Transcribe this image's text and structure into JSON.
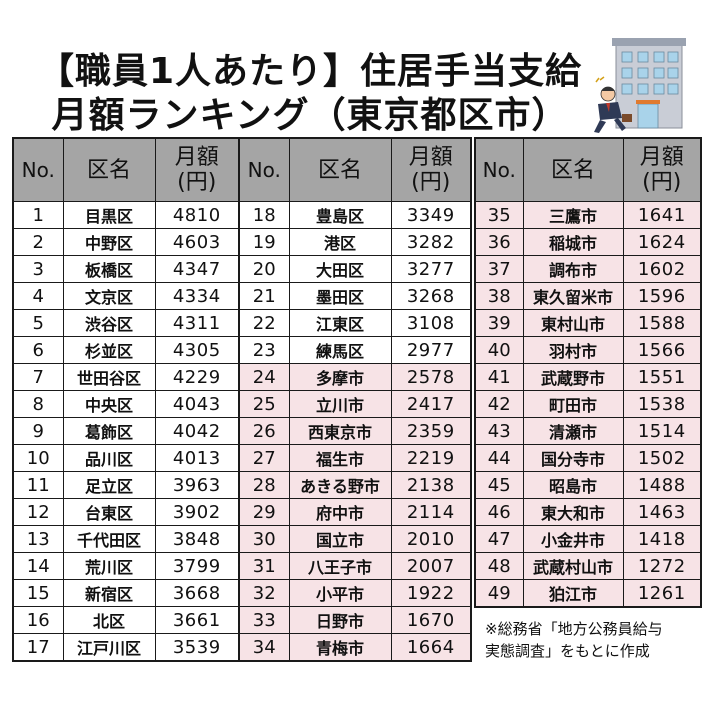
{
  "title": {
    "line1": "【職員1人あたり】住居手当支給",
    "line2": "月額ランキング（東京都区市）"
  },
  "headers": {
    "no": "No.",
    "name": "区名",
    "amount_line1": "月額",
    "amount_line2": "(円)"
  },
  "colors": {
    "header_bg": "#a5a5a5",
    "city_row_bg": "#f7e3e6",
    "border": "#1a1a1a"
  },
  "illustration": {
    "icon": "office-building-businessman-icon"
  },
  "table1": [
    {
      "no": "1",
      "name": "目黒区",
      "amount": "4810",
      "type": "ward"
    },
    {
      "no": "2",
      "name": "中野区",
      "amount": "4603",
      "type": "ward"
    },
    {
      "no": "3",
      "name": "板橋区",
      "amount": "4347",
      "type": "ward"
    },
    {
      "no": "4",
      "name": "文京区",
      "amount": "4334",
      "type": "ward"
    },
    {
      "no": "5",
      "name": "渋谷区",
      "amount": "4311",
      "type": "ward"
    },
    {
      "no": "6",
      "name": "杉並区",
      "amount": "4305",
      "type": "ward"
    },
    {
      "no": "7",
      "name": "世田谷区",
      "amount": "4229",
      "type": "ward"
    },
    {
      "no": "8",
      "name": "中央区",
      "amount": "4043",
      "type": "ward"
    },
    {
      "no": "9",
      "name": "葛飾区",
      "amount": "4042",
      "type": "ward"
    },
    {
      "no": "10",
      "name": "品川区",
      "amount": "4013",
      "type": "ward"
    },
    {
      "no": "11",
      "name": "足立区",
      "amount": "3963",
      "type": "ward"
    },
    {
      "no": "12",
      "name": "台東区",
      "amount": "3902",
      "type": "ward"
    },
    {
      "no": "13",
      "name": "千代田区",
      "amount": "3848",
      "type": "ward"
    },
    {
      "no": "14",
      "name": "荒川区",
      "amount": "3799",
      "type": "ward"
    },
    {
      "no": "15",
      "name": "新宿区",
      "amount": "3668",
      "type": "ward"
    },
    {
      "no": "16",
      "name": "北区",
      "amount": "3661",
      "type": "ward"
    },
    {
      "no": "17",
      "name": "江戸川区",
      "amount": "3539",
      "type": "ward"
    }
  ],
  "table2": [
    {
      "no": "18",
      "name": "豊島区",
      "amount": "3349",
      "type": "ward"
    },
    {
      "no": "19",
      "name": "港区",
      "amount": "3282",
      "type": "ward"
    },
    {
      "no": "20",
      "name": "大田区",
      "amount": "3277",
      "type": "ward"
    },
    {
      "no": "21",
      "name": "墨田区",
      "amount": "3268",
      "type": "ward"
    },
    {
      "no": "22",
      "name": "江東区",
      "amount": "3108",
      "type": "ward"
    },
    {
      "no": "23",
      "name": "練馬区",
      "amount": "2977",
      "type": "ward"
    },
    {
      "no": "24",
      "name": "多摩市",
      "amount": "2578",
      "type": "city"
    },
    {
      "no": "25",
      "name": "立川市",
      "amount": "2417",
      "type": "city"
    },
    {
      "no": "26",
      "name": "西東京市",
      "amount": "2359",
      "type": "city"
    },
    {
      "no": "27",
      "name": "福生市",
      "amount": "2219",
      "type": "city"
    },
    {
      "no": "28",
      "name": "あきる野市",
      "amount": "2138",
      "type": "city"
    },
    {
      "no": "29",
      "name": "府中市",
      "amount": "2114",
      "type": "city"
    },
    {
      "no": "30",
      "name": "国立市",
      "amount": "2010",
      "type": "city"
    },
    {
      "no": "31",
      "name": "八王子市",
      "amount": "2007",
      "type": "city"
    },
    {
      "no": "32",
      "name": "小平市",
      "amount": "1922",
      "type": "city"
    },
    {
      "no": "33",
      "name": "日野市",
      "amount": "1670",
      "type": "city"
    },
    {
      "no": "34",
      "name": "青梅市",
      "amount": "1664",
      "type": "city"
    }
  ],
  "table3": [
    {
      "no": "35",
      "name": "三鷹市",
      "amount": "1641",
      "type": "city"
    },
    {
      "no": "36",
      "name": "稲城市",
      "amount": "1624",
      "type": "city"
    },
    {
      "no": "37",
      "name": "調布市",
      "amount": "1602",
      "type": "city"
    },
    {
      "no": "38",
      "name": "東久留米市",
      "amount": "1596",
      "type": "city"
    },
    {
      "no": "39",
      "name": "東村山市",
      "amount": "1588",
      "type": "city"
    },
    {
      "no": "40",
      "name": "羽村市",
      "amount": "1566",
      "type": "city"
    },
    {
      "no": "41",
      "name": "武蔵野市",
      "amount": "1551",
      "type": "city"
    },
    {
      "no": "42",
      "name": "町田市",
      "amount": "1538",
      "type": "city"
    },
    {
      "no": "43",
      "name": "清瀬市",
      "amount": "1514",
      "type": "city"
    },
    {
      "no": "44",
      "name": "国分寺市",
      "amount": "1502",
      "type": "city"
    },
    {
      "no": "45",
      "name": "昭島市",
      "amount": "1488",
      "type": "city"
    },
    {
      "no": "46",
      "name": "東大和市",
      "amount": "1463",
      "type": "city"
    },
    {
      "no": "47",
      "name": "小金井市",
      "amount": "1418",
      "type": "city"
    },
    {
      "no": "48",
      "name": "武蔵村山市",
      "amount": "1272",
      "type": "city"
    },
    {
      "no": "49",
      "name": "狛江市",
      "amount": "1261",
      "type": "city"
    }
  ],
  "note": {
    "line1": "※総務省「地方公務員給与",
    "line2": "実態調査」をもとに作成"
  }
}
